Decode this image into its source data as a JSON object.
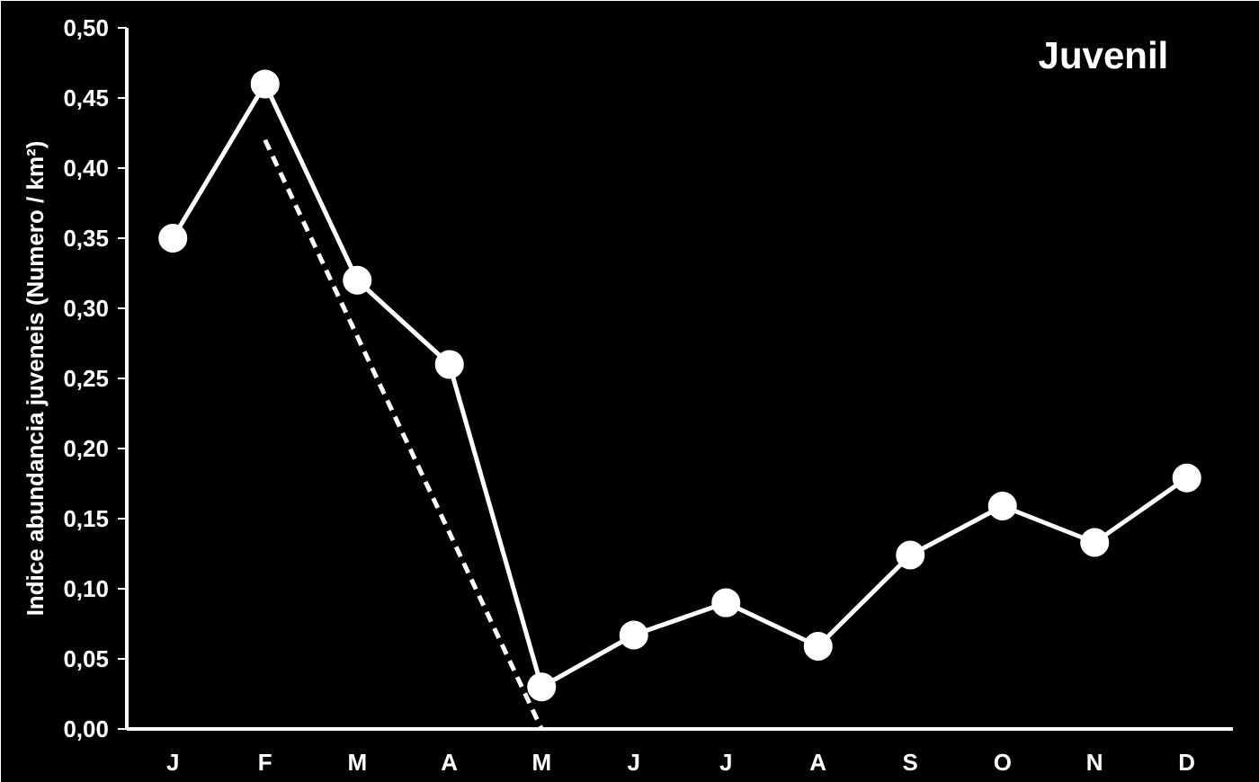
{
  "chart_data": {
    "type": "line",
    "title": "Juvenil",
    "ylabel": "Indice abundancia juveneis (Numero / km²)",
    "categories": [
      "J",
      "F",
      "M",
      "A",
      "M",
      "J",
      "J",
      "A",
      "S",
      "O",
      "N",
      "D"
    ],
    "series": [
      {
        "color": "#ffffff",
        "values": [
          0.35,
          0.46,
          0.32,
          0.26,
          0.03,
          0.067,
          0.09,
          0.059,
          0.124,
          0.159,
          0.133,
          0.179
        ],
        "marker": "circle",
        "line_style": "solid"
      },
      {
        "type": "line",
        "color": "#ffffff",
        "values": [
          null,
          0.42,
          null,
          null,
          0,
          null,
          null,
          null,
          null,
          null,
          null,
          null
        ],
        "marker": "none",
        "line_style": "dashed"
      }
    ],
    "ylim": [
      0,
      0.5
    ],
    "yticks": [
      {
        "value": 0,
        "label": "0,00"
      },
      {
        "value": 0.05,
        "label": "0,05"
      },
      {
        "value": 0.1,
        "label": "0,10"
      },
      {
        "value": 0.15,
        "label": "0,15"
      },
      {
        "value": 0.2,
        "label": "0,20"
      },
      {
        "value": 0.25,
        "label": "0,25"
      },
      {
        "value": 0.3,
        "label": "0,30"
      },
      {
        "value": 0.35,
        "label": "0,35"
      },
      {
        "value": 0.4,
        "label": "0,40"
      },
      {
        "value": 0.45,
        "label": "0,45"
      },
      {
        "value": 0.5,
        "label": "0,50"
      }
    ],
    "grid": false
  }
}
